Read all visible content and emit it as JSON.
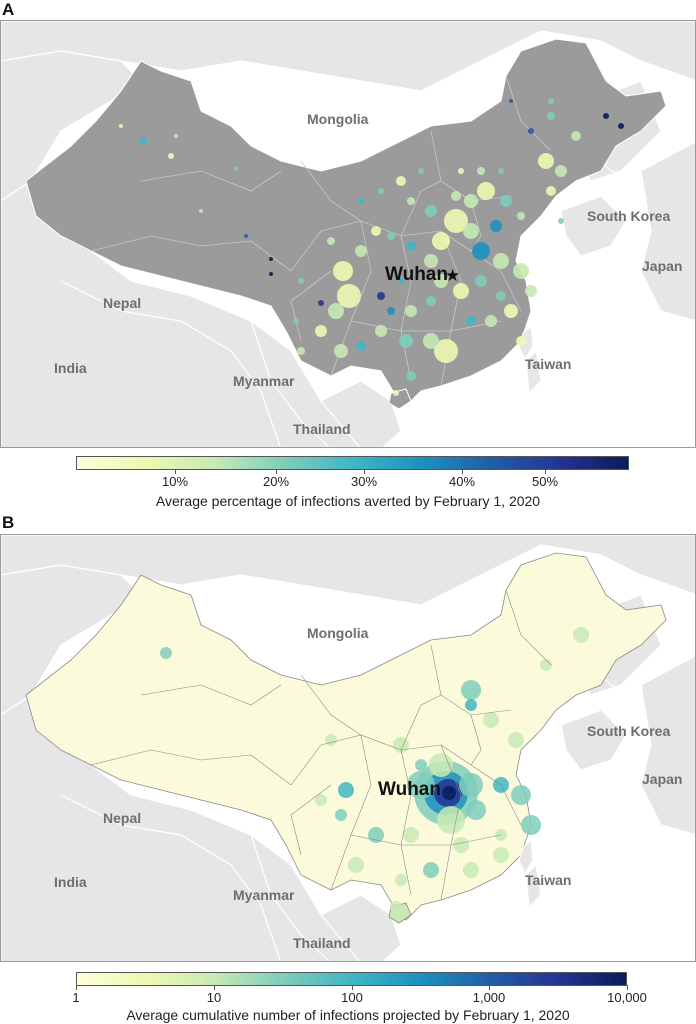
{
  "panel_a": {
    "letter": "A",
    "labels": {
      "mongolia": "Mongolia",
      "south_korea": "South Korea",
      "japan": "Japan",
      "nepal": "Nepal",
      "india": "India",
      "myanmar": "Myanmar",
      "thailand": "Thailand",
      "taiwan": "Taiwan",
      "wuhan": "Wuhan"
    },
    "wuhan_marker": "★",
    "legend": {
      "title": "Average percentage of infections averted by February 1, 2020",
      "ticks": [
        "10%",
        "20%",
        "30%",
        "40%",
        "50%"
      ],
      "colors": [
        "#ffffd9",
        "#edf8b1",
        "#c7e9b4",
        "#7fcdbb",
        "#41b6c4",
        "#1d91c0",
        "#225ea8",
        "#253494",
        "#081d58"
      ]
    }
  },
  "panel_b": {
    "letter": "B",
    "labels": {
      "mongolia": "Mongolia",
      "south_korea": "South Korea",
      "japan": "Japan",
      "nepal": "Nepal",
      "india": "India",
      "myanmar": "Myanmar",
      "thailand": "Thailand",
      "taiwan": "Taiwan",
      "wuhan": "Wuhan"
    },
    "legend": {
      "title": "Average cumulative number of infections projected by February 1, 2020",
      "ticks": [
        "1",
        "10",
        "100",
        "1,000",
        "10,000"
      ],
      "colors": [
        "#ffffd9",
        "#edf8b1",
        "#c7e9b4",
        "#7fcdbb",
        "#41b6c4",
        "#1d91c0",
        "#225ea8",
        "#253494",
        "#081d58"
      ]
    }
  },
  "colors": {
    "china_fill_a": "#9b9b9b",
    "china_fill_b": "#fbfbdc",
    "neighbor_fill": "#e6e6e6",
    "sea": "#ffffff",
    "border": "#ffffff"
  }
}
